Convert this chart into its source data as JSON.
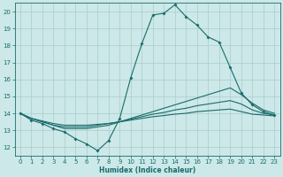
{
  "xlabel": "Humidex (Indice chaleur)",
  "xlim": [
    -0.5,
    23.5
  ],
  "ylim": [
    11.5,
    20.5
  ],
  "yticks": [
    12,
    13,
    14,
    15,
    16,
    17,
    18,
    19,
    20
  ],
  "xticks": [
    0,
    1,
    2,
    3,
    4,
    5,
    6,
    7,
    8,
    9,
    10,
    11,
    12,
    13,
    14,
    15,
    16,
    17,
    18,
    19,
    20,
    21,
    22,
    23
  ],
  "bg_color": "#cce8e8",
  "grid_color": "#aacccc",
  "line_color": "#1a6b6b",
  "line1_x": [
    0,
    1,
    2,
    3,
    4,
    5,
    6,
    7,
    8,
    9,
    10,
    11,
    12,
    13,
    14,
    15,
    16,
    17,
    18,
    19,
    20,
    21,
    22,
    23
  ],
  "line1_y": [
    14.0,
    13.6,
    13.4,
    13.1,
    12.9,
    12.5,
    12.2,
    11.8,
    12.4,
    13.7,
    16.1,
    18.1,
    19.8,
    19.9,
    20.4,
    19.7,
    19.2,
    18.5,
    18.2,
    16.7,
    15.2,
    14.5,
    14.1,
    13.9
  ],
  "line2_x": [
    0,
    1,
    2,
    3,
    4,
    5,
    6,
    7,
    8,
    9,
    10,
    11,
    12,
    13,
    14,
    15,
    16,
    17,
    18,
    19,
    20,
    21,
    22,
    23
  ],
  "line2_y": [
    14.0,
    13.7,
    13.5,
    13.3,
    13.1,
    13.1,
    13.1,
    13.2,
    13.3,
    13.5,
    13.7,
    13.9,
    14.1,
    14.3,
    14.5,
    14.7,
    14.9,
    15.1,
    15.3,
    15.5,
    15.1,
    14.6,
    14.2,
    14.0
  ],
  "line3_x": [
    0,
    1,
    2,
    3,
    4,
    5,
    6,
    7,
    8,
    9,
    10,
    11,
    12,
    13,
    14,
    15,
    16,
    17,
    18,
    19,
    20,
    21,
    22,
    23
  ],
  "line3_y": [
    14.0,
    13.7,
    13.5,
    13.3,
    13.2,
    13.2,
    13.2,
    13.3,
    13.4,
    13.5,
    13.65,
    13.8,
    13.95,
    14.05,
    14.2,
    14.3,
    14.45,
    14.55,
    14.65,
    14.75,
    14.55,
    14.2,
    14.0,
    13.9
  ],
  "line4_x": [
    0,
    1,
    2,
    3,
    4,
    5,
    6,
    7,
    8,
    9,
    10,
    11,
    12,
    13,
    14,
    15,
    16,
    17,
    18,
    19,
    20,
    21,
    22,
    23
  ],
  "line4_y": [
    14.0,
    13.7,
    13.55,
    13.4,
    13.3,
    13.3,
    13.3,
    13.35,
    13.4,
    13.5,
    13.6,
    13.7,
    13.8,
    13.87,
    13.95,
    14.0,
    14.1,
    14.15,
    14.2,
    14.25,
    14.1,
    13.95,
    13.9,
    13.85
  ]
}
